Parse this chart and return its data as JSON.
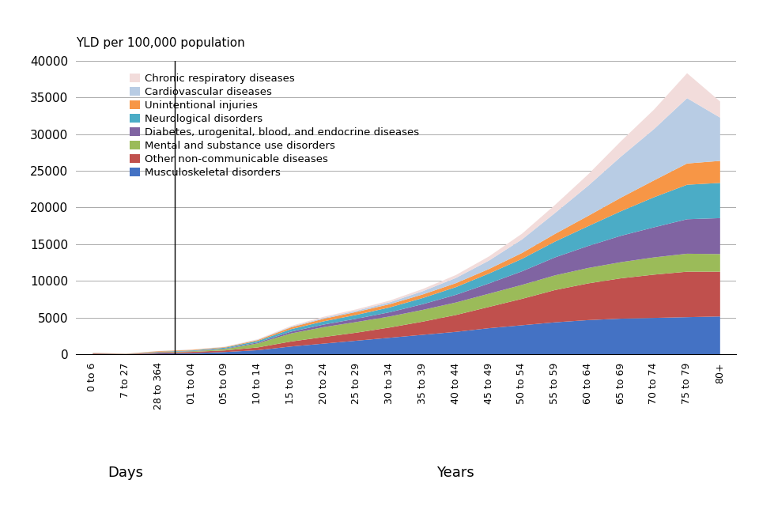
{
  "categories": [
    "0 to 6",
    "7 to 27",
    "28 to 364",
    "01 to 04",
    "05 to 09",
    "10 to 14",
    "15 to 19",
    "20 to 24",
    "25 to 29",
    "30 to 34",
    "35 to 39",
    "40 to 44",
    "45 to 49",
    "50 to 54",
    "55 to 59",
    "60 to 64",
    "65 to 69",
    "70 to 74",
    "75 to 79",
    "80+"
  ],
  "series": [
    {
      "name": "Musculoskeletal disorders",
      "color": "#4472C4",
      "values": [
        80,
        40,
        150,
        200,
        350,
        600,
        1100,
        1500,
        1900,
        2300,
        2700,
        3100,
        3600,
        4000,
        4400,
        4700,
        4900,
        5000,
        5100,
        5200
      ]
    },
    {
      "name": "Other non-communicable diseases",
      "color": "#C0504D",
      "values": [
        80,
        30,
        120,
        170,
        220,
        380,
        680,
        900,
        1100,
        1400,
        1800,
        2300,
        2900,
        3600,
        4400,
        5000,
        5500,
        5900,
        6200,
        6100
      ]
    },
    {
      "name": "Mental and substance use disorders",
      "color": "#9BBB59",
      "values": [
        15,
        8,
        40,
        80,
        180,
        550,
        1100,
        1350,
        1450,
        1500,
        1600,
        1700,
        1800,
        1900,
        2000,
        2100,
        2200,
        2350,
        2450,
        2400
      ]
    },
    {
      "name": "Diabetes, urogenital, blood, and endocrine diseases",
      "color": "#8064A2",
      "values": [
        8,
        4,
        20,
        40,
        70,
        130,
        240,
        350,
        450,
        580,
        780,
        1050,
        1400,
        1850,
        2450,
        3000,
        3600,
        4100,
        4700,
        4900
      ]
    },
    {
      "name": "Neurological disorders",
      "color": "#4BACC6",
      "values": [
        25,
        15,
        60,
        80,
        120,
        210,
        340,
        440,
        530,
        660,
        840,
        1050,
        1350,
        1700,
        2150,
        2700,
        3350,
        4100,
        4700,
        4800
      ]
    },
    {
      "name": "Unintentional injuries",
      "color": "#F79646",
      "values": [
        30,
        20,
        80,
        80,
        80,
        120,
        250,
        350,
        400,
        440,
        490,
        540,
        620,
        800,
        1050,
        1400,
        1850,
        2300,
        2900,
        3000
      ]
    },
    {
      "name": "Cardiovascular diseases",
      "color": "#B8CCE4",
      "values": [
        8,
        3,
        15,
        20,
        30,
        50,
        80,
        120,
        170,
        260,
        440,
        710,
        1150,
        1850,
        2850,
        4100,
        5600,
        7000,
        8900,
        5900
      ]
    },
    {
      "name": "Chronic respiratory diseases",
      "color": "#F2DCDB",
      "values": [
        8,
        3,
        15,
        20,
        30,
        60,
        110,
        150,
        190,
        230,
        300,
        400,
        560,
        780,
        1100,
        1550,
        2100,
        2650,
        3400,
        2200
      ]
    }
  ],
  "ylabel": "YLD per 100,000 population",
  "ylim": [
    0,
    40000
  ],
  "yticks": [
    0,
    5000,
    10000,
    15000,
    20000,
    25000,
    30000,
    35000,
    40000
  ],
  "background_color": "#FFFFFF",
  "days_label": "Days",
  "years_label": "Years"
}
